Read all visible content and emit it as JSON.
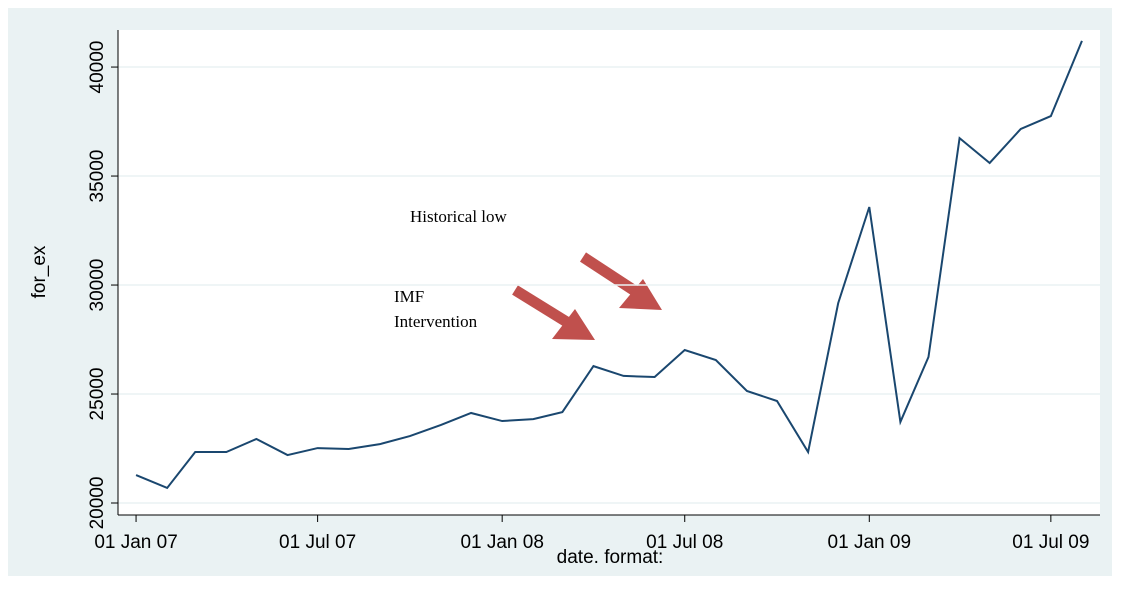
{
  "chart_data": {
    "type": "line",
    "x_label": "date.  format:",
    "y_label": "for_ex",
    "x": [
      "2007-01-01",
      "2007-02-01",
      "2007-03-01",
      "2007-04-01",
      "2007-05-01",
      "2007-06-01",
      "2007-07-01",
      "2007-08-01",
      "2007-09-01",
      "2007-10-01",
      "2007-11-01",
      "2007-12-01",
      "2008-01-01",
      "2008-02-01",
      "2008-03-01",
      "2008-04-01",
      "2008-05-01",
      "2008-06-01",
      "2008-07-01",
      "2008-08-01",
      "2008-09-01",
      "2008-10-01",
      "2008-11-01",
      "2008-12-01",
      "2009-01-01",
      "2009-02-01",
      "2009-03-01",
      "2009-04-01",
      "2009-05-01",
      "2009-06-01",
      "2009-07-01",
      "2009-08-01"
    ],
    "series": [
      {
        "name": "for_ex",
        "color": "#1a476f",
        "values": [
          21280,
          20690,
          22340,
          22340,
          22940,
          22200,
          22520,
          22480,
          22700,
          23070,
          23580,
          24130,
          23760,
          23850,
          24170,
          26280,
          25830,
          25780,
          27020,
          26560,
          25140,
          24680,
          22340,
          29170,
          33580,
          23720,
          26700,
          36740,
          35600,
          37160,
          37750,
          41200
        ]
      }
    ],
    "xlim": [
      "2006-12-14",
      "2009-08-19"
    ],
    "xticks": [
      {
        "value": "2007-01-01",
        "label": "01 Jan 07"
      },
      {
        "value": "2007-07-01",
        "label": "01 Jul 07"
      },
      {
        "value": "2008-01-01",
        "label": "01 Jan 08"
      },
      {
        "value": "2008-07-01",
        "label": "01 Jul 08"
      },
      {
        "value": "2009-01-01",
        "label": "01 Jan 09"
      },
      {
        "value": "2009-07-01",
        "label": "01 Jul 09"
      }
    ],
    "ylim": [
      19450,
      41700
    ],
    "yticks": [
      20000,
      25000,
      30000,
      35000,
      40000
    ],
    "grid": true,
    "annotations": [
      {
        "lines": [
          "Historical low"
        ]
      },
      {
        "lines": [
          "IMF",
          "Intervention"
        ]
      }
    ]
  }
}
